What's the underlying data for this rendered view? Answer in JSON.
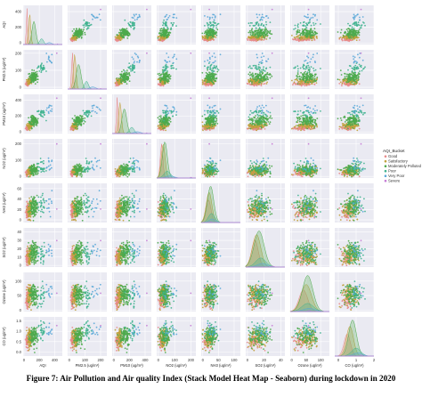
{
  "caption": "Figure 7: Air Pollution and Air quality Index  (Stack Model Heat Map - Seaborn) during lockdown in 2020",
  "chart_data": {
    "type": "scatter",
    "variables": [
      "AQI",
      "PM2.5 (ug/m³)",
      "PM10 (ug/m³)",
      "NO2 (ug/m³)",
      "NH3 (ug/m³)",
      "SO2 (ug/m³)",
      "Ozone (ug/m³)",
      "CO (ug/m³)"
    ],
    "x_ticks": [
      [
        "0",
        "200",
        "400"
      ],
      [
        "0",
        "100",
        "200"
      ],
      [
        "0",
        "200",
        "400"
      ],
      [
        "0",
        "100",
        "200"
      ],
      [
        "0",
        "50",
        "100"
      ],
      [
        "0",
        "20",
        "40"
      ],
      [
        "0",
        "50",
        "100"
      ],
      [
        "0",
        "1",
        "2"
      ]
    ],
    "y_ticks": [
      [
        "0",
        "200",
        "400"
      ],
      [
        "0",
        "100",
        "200"
      ],
      [
        "0",
        "200",
        "400"
      ],
      [
        "0",
        "100",
        "200"
      ],
      [
        "0",
        "20",
        "40",
        "60"
      ],
      [
        "0",
        "10",
        "20",
        "30",
        "40"
      ],
      [
        "0",
        "50",
        "100"
      ],
      [
        "0.0",
        "0.5",
        "1.0",
        "1.5"
      ]
    ],
    "ranges": [
      [
        -10,
        500
      ],
      [
        -10,
        240
      ],
      [
        -20,
        480
      ],
      [
        -10,
        230
      ],
      [
        -5,
        120
      ],
      [
        -2,
        45
      ],
      [
        -5,
        130
      ],
      [
        -0.2,
        2.0
      ]
    ],
    "y_ranges": [
      [
        -20,
        480
      ],
      [
        -10,
        220
      ],
      [
        -20,
        470
      ],
      [
        -10,
        230
      ],
      [
        -5,
        70
      ],
      [
        -2,
        45
      ],
      [
        -5,
        130
      ],
      [
        -0.2,
        1.7
      ]
    ],
    "legend_title": "AQI_Bucket",
    "legend_position": "right",
    "categories": [
      {
        "name": "Good",
        "color": "#e88b8b"
      },
      {
        "name": "Satisfactory",
        "color": "#c0a03c"
      },
      {
        "name": "Moderately Polluted",
        "color": "#4daa4d"
      },
      {
        "name": "Poor",
        "color": "#3fb38f"
      },
      {
        "name": "Very Poor",
        "color": "#5aa8d8"
      },
      {
        "name": "Severe",
        "color": "#c77dd6"
      }
    ],
    "centers": [
      [
        40,
        20,
        45,
        20,
        18,
        9,
        40,
        0.5
      ],
      [
        75,
        35,
        80,
        30,
        20,
        11,
        50,
        0.65
      ],
      [
        130,
        60,
        135,
        40,
        25,
        14,
        55,
        0.8
      ],
      [
        230,
        110,
        230,
        55,
        28,
        16,
        55,
        1.0
      ],
      [
        330,
        150,
        300,
        70,
        30,
        18,
        60,
        1.1
      ],
      [
        440,
        200,
        420,
        200,
        25,
        30,
        60,
        1.3
      ]
    ],
    "spreads": [
      [
        8,
        5,
        10,
        8,
        8,
        4,
        15,
        0.18
      ],
      [
        14,
        8,
        18,
        12,
        9,
        5,
        18,
        0.2
      ],
      [
        25,
        15,
        30,
        15,
        10,
        6,
        18,
        0.22
      ],
      [
        25,
        12,
        30,
        20,
        10,
        6,
        20,
        0.25
      ],
      [
        30,
        18,
        40,
        25,
        10,
        6,
        20,
        0.25
      ],
      [
        5,
        5,
        10,
        5,
        3,
        2,
        5,
        0.05
      ]
    ],
    "counts": [
      60,
      90,
      120,
      30,
      12,
      1
    ],
    "grid": true
  }
}
